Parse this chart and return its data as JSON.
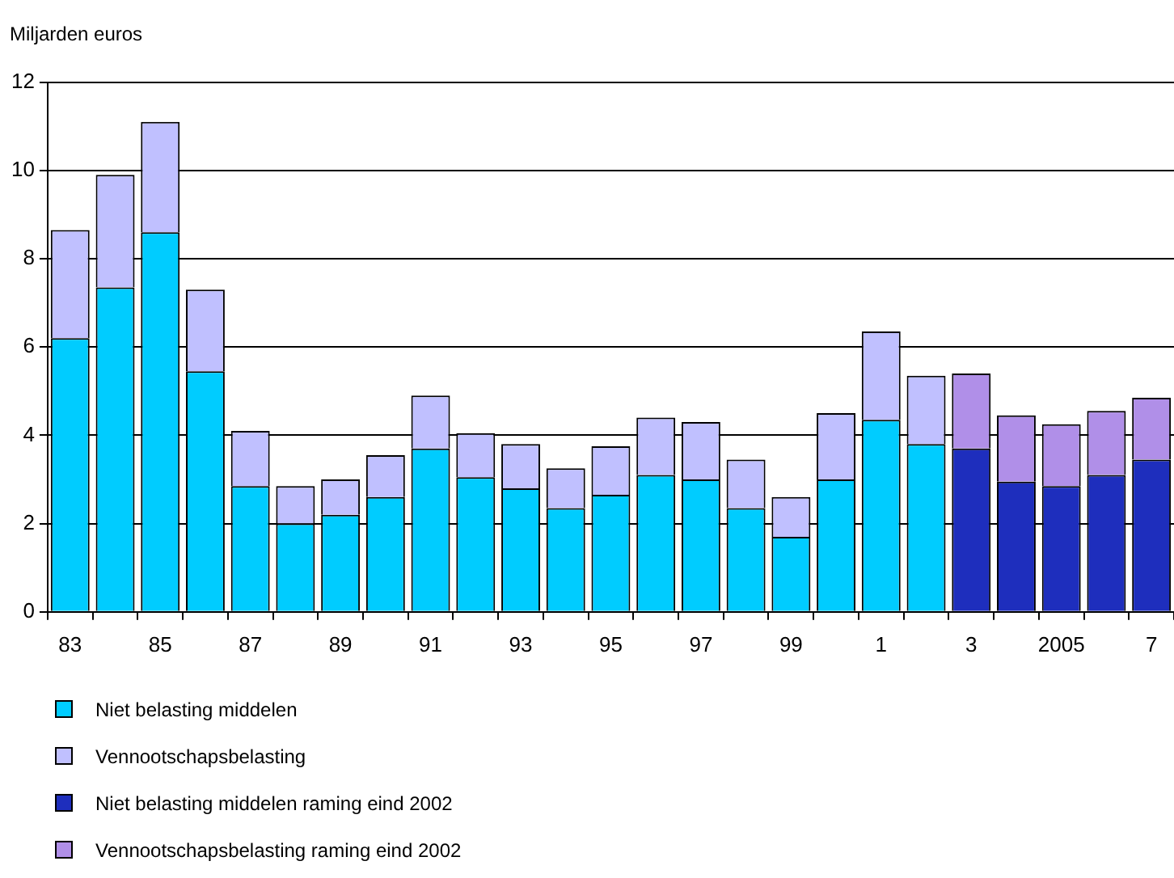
{
  "chart_data": {
    "type": "bar",
    "ylabel": "Miljarden euros",
    "stacked": true,
    "grid": "y",
    "legend": "bottom",
    "categories": [
      "83",
      null,
      "85",
      null,
      "87",
      null,
      "89",
      null,
      "91",
      null,
      "93",
      null,
      "95",
      null,
      "97",
      null,
      "99",
      null,
      "1",
      null,
      "3",
      null,
      "2005",
      null,
      "7"
    ],
    "ylim": [
      0,
      12
    ],
    "yticks": [
      0,
      2,
      4,
      6,
      8,
      10,
      12
    ],
    "series": [
      {
        "name": "Niet belasting middelen",
        "color": "#00ccff",
        "values": [
          6.2,
          7.35,
          8.6,
          5.45,
          2.85,
          2.0,
          2.2,
          2.6,
          3.7,
          3.05,
          2.8,
          2.35,
          2.65,
          3.1,
          3.0,
          2.35,
          1.7,
          3.0,
          4.35,
          3.8,
          null,
          null,
          null,
          null,
          null
        ]
      },
      {
        "name": "Vennootschapsbelasting",
        "color": "#c0c0ff",
        "values": [
          2.45,
          2.55,
          2.5,
          1.85,
          1.25,
          0.85,
          0.8,
          0.95,
          1.2,
          1.0,
          1.0,
          0.9,
          1.1,
          1.3,
          1.3,
          1.1,
          0.9,
          1.5,
          2.0,
          1.55,
          null,
          null,
          null,
          null,
          null
        ]
      },
      {
        "name": "Niet belasting middelen raming eind 2002",
        "color": "#1e2ebd",
        "values": [
          null,
          null,
          null,
          null,
          null,
          null,
          null,
          null,
          null,
          null,
          null,
          null,
          null,
          null,
          null,
          null,
          null,
          null,
          null,
          null,
          3.7,
          2.95,
          2.85,
          3.1,
          3.45
        ]
      },
      {
        "name": "Vennootschapsbelasting raming eind 2002",
        "color": "#b08fe8",
        "values": [
          null,
          null,
          null,
          null,
          null,
          null,
          null,
          null,
          null,
          null,
          null,
          null,
          null,
          null,
          null,
          null,
          null,
          null,
          null,
          null,
          1.7,
          1.5,
          1.4,
          1.45,
          1.4
        ]
      }
    ]
  }
}
